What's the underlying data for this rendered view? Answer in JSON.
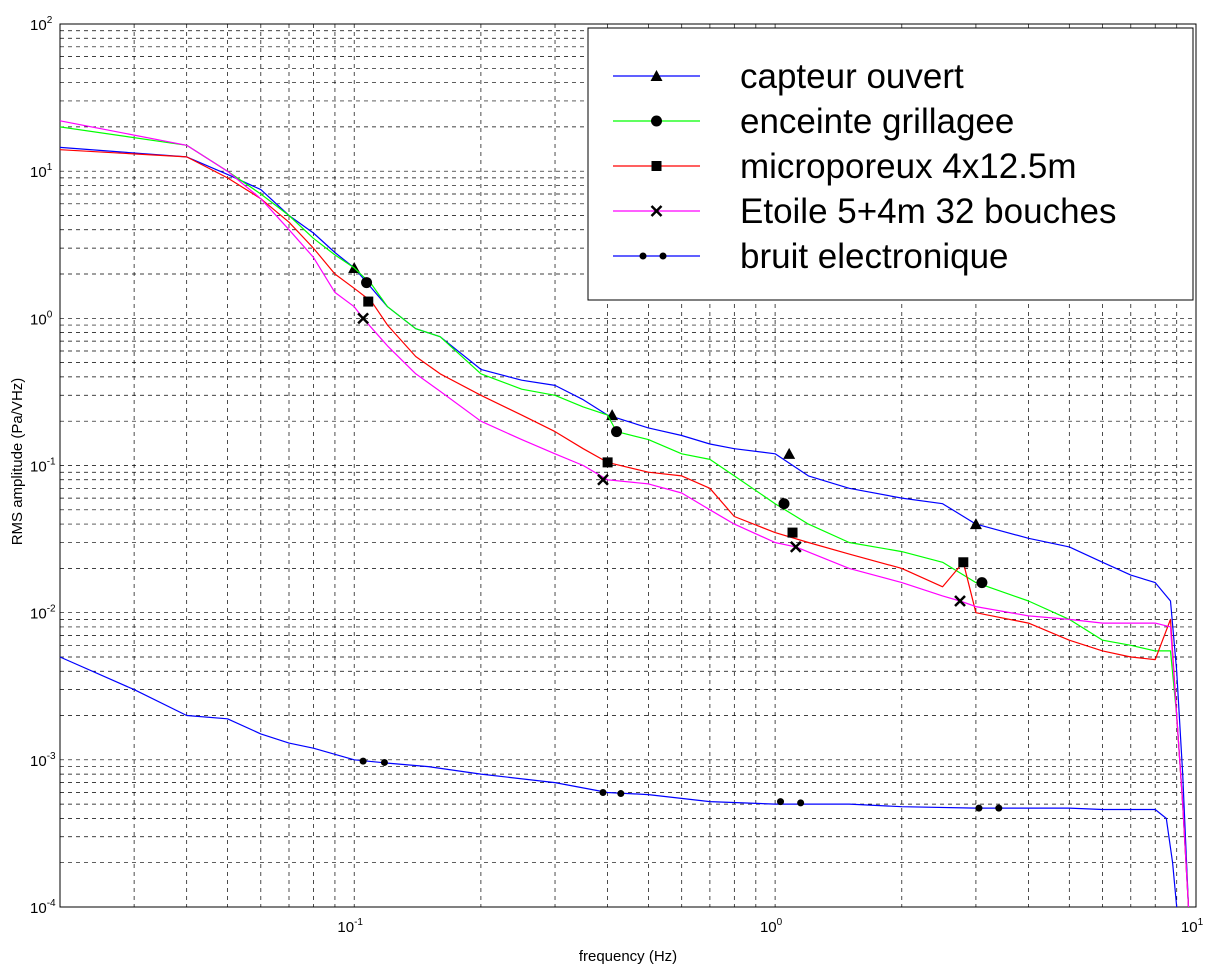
{
  "chart_data": {
    "type": "line",
    "title": "",
    "xlabel": "frequency (Hz)",
    "ylabel": "RMS amplitude (Pa/√Hz)",
    "ylabel_text": "RMS amplitude (Pa/VHz)",
    "xscale": "log",
    "yscale": "log",
    "xlim": [
      0.02,
      10
    ],
    "ylim": [
      0.0001,
      100
    ],
    "x_ticks": [
      {
        "value": 0.1,
        "base": "10",
        "exp": "-1"
      },
      {
        "value": 1,
        "base": "10",
        "exp": "0"
      },
      {
        "value": 10,
        "base": "10",
        "exp": "1"
      }
    ],
    "y_ticks": [
      {
        "value": 0.0001,
        "base": "10",
        "exp": "-4"
      },
      {
        "value": 0.001,
        "base": "10",
        "exp": "-3"
      },
      {
        "value": 0.01,
        "base": "10",
        "exp": "-2"
      },
      {
        "value": 0.1,
        "base": "10",
        "exp": "-1"
      },
      {
        "value": 1,
        "base": "10",
        "exp": "0"
      },
      {
        "value": 10,
        "base": "10",
        "exp": "1"
      },
      {
        "value": 100,
        "base": "10",
        "exp": "2"
      }
    ],
    "grid": true,
    "legend_position": "top-right",
    "series": [
      {
        "name": "capteur ouvert",
        "color": "#0000ff",
        "marker": "triangle",
        "x": [
          0.02,
          0.04,
          0.05,
          0.06,
          0.07,
          0.08,
          0.09,
          0.1,
          0.12,
          0.14,
          0.16,
          0.2,
          0.25,
          0.3,
          0.35,
          0.4,
          0.5,
          0.6,
          0.7,
          0.8,
          1.0,
          1.2,
          1.5,
          2.0,
          2.5,
          3.0,
          4.0,
          5.0,
          6.0,
          7.0,
          8.0,
          8.7,
          9.0,
          9.3,
          9.6
        ],
        "y": [
          14.5,
          12.5,
          9.5,
          7.5,
          5.0,
          3.8,
          2.8,
          2.2,
          1.2,
          0.85,
          0.75,
          0.45,
          0.38,
          0.35,
          0.28,
          0.22,
          0.18,
          0.16,
          0.14,
          0.13,
          0.12,
          0.085,
          0.07,
          0.06,
          0.055,
          0.04,
          0.032,
          0.028,
          0.022,
          0.018,
          0.016,
          0.012,
          0.004,
          0.0008,
          0.0001
        ],
        "markers_x": [
          0.1,
          0.41,
          1.08,
          3.0
        ],
        "markers_y": [
          2.2,
          0.22,
          0.12,
          0.04
        ]
      },
      {
        "name": "enceinte grillagee",
        "color": "#00ff00",
        "marker": "circle",
        "x": [
          0.02,
          0.04,
          0.05,
          0.06,
          0.07,
          0.08,
          0.09,
          0.1,
          0.11,
          0.12,
          0.14,
          0.16,
          0.2,
          0.25,
          0.3,
          0.35,
          0.4,
          0.42,
          0.5,
          0.6,
          0.7,
          0.8,
          1.0,
          1.2,
          1.5,
          2.0,
          2.5,
          3.0,
          4.0,
          5.0,
          6.0,
          7.0,
          8.0,
          8.7,
          9.0,
          9.3,
          9.6
        ],
        "y": [
          20.0,
          15.0,
          10.0,
          7.0,
          5.0,
          3.5,
          2.7,
          2.2,
          1.7,
          1.2,
          0.85,
          0.75,
          0.42,
          0.33,
          0.3,
          0.25,
          0.22,
          0.17,
          0.15,
          0.12,
          0.11,
          0.085,
          0.055,
          0.04,
          0.03,
          0.026,
          0.022,
          0.016,
          0.012,
          0.009,
          0.0065,
          0.006,
          0.0055,
          0.0055,
          0.002,
          0.0005,
          0.0001
        ],
        "markers_x": [
          0.107,
          0.42,
          1.05,
          3.1
        ],
        "markers_y": [
          1.75,
          0.17,
          0.055,
          0.016
        ]
      },
      {
        "name": "microporeux 4x12.5m",
        "color": "#ff0000",
        "marker": "square",
        "x": [
          0.02,
          0.04,
          0.05,
          0.06,
          0.07,
          0.08,
          0.09,
          0.1,
          0.11,
          0.12,
          0.14,
          0.16,
          0.2,
          0.25,
          0.3,
          0.35,
          0.4,
          0.5,
          0.6,
          0.7,
          0.8,
          1.0,
          1.2,
          1.5,
          2.0,
          2.5,
          2.8,
          3.0,
          4.0,
          5.0,
          6.0,
          7.0,
          8.0,
          8.7,
          9.0,
          9.3,
          9.6
        ],
        "y": [
          14.0,
          12.5,
          9.0,
          6.5,
          4.5,
          3.0,
          2.0,
          1.6,
          1.3,
          0.9,
          0.55,
          0.42,
          0.3,
          0.22,
          0.17,
          0.13,
          0.105,
          0.09,
          0.085,
          0.07,
          0.045,
          0.035,
          0.03,
          0.025,
          0.02,
          0.015,
          0.022,
          0.01,
          0.0085,
          0.0065,
          0.0055,
          0.005,
          0.0048,
          0.009,
          0.002,
          0.0005,
          0.0001
        ],
        "markers_x": [
          0.108,
          0.4,
          1.1,
          2.8
        ],
        "markers_y": [
          1.3,
          0.105,
          0.035,
          0.022
        ]
      },
      {
        "name": "Etoile 5+4m 32 bouches",
        "color": "#ff00ff",
        "marker": "x",
        "x": [
          0.02,
          0.04,
          0.05,
          0.06,
          0.07,
          0.08,
          0.09,
          0.1,
          0.105,
          0.12,
          0.14,
          0.16,
          0.2,
          0.25,
          0.3,
          0.35,
          0.4,
          0.5,
          0.6,
          0.7,
          0.8,
          1.0,
          1.12,
          1.5,
          2.0,
          2.5,
          2.75,
          3.0,
          4.0,
          5.0,
          6.0,
          7.0,
          8.0,
          8.7,
          9.0,
          9.3,
          9.6
        ],
        "y": [
          22.0,
          15.0,
          10.0,
          6.5,
          4.0,
          2.6,
          1.5,
          1.2,
          1.0,
          0.65,
          0.42,
          0.32,
          0.2,
          0.15,
          0.12,
          0.1,
          0.08,
          0.075,
          0.065,
          0.05,
          0.04,
          0.03,
          0.028,
          0.02,
          0.016,
          0.013,
          0.012,
          0.011,
          0.0095,
          0.009,
          0.0085,
          0.0085,
          0.0085,
          0.008,
          0.002,
          0.0005,
          0.0001
        ],
        "markers_x": [
          0.105,
          0.39,
          1.12,
          2.75
        ],
        "markers_y": [
          1.0,
          0.08,
          0.028,
          0.012
        ]
      },
      {
        "name": "bruit electronique",
        "color": "#0000ff",
        "marker": "dot-pair",
        "x": [
          0.02,
          0.03,
          0.04,
          0.05,
          0.06,
          0.07,
          0.08,
          0.1,
          0.12,
          0.15,
          0.2,
          0.3,
          0.4,
          0.5,
          0.7,
          1.0,
          1.5,
          2.0,
          3.0,
          4.0,
          5.0,
          6.0,
          7.0,
          8.0,
          8.5,
          8.8,
          9.0
        ],
        "y": [
          0.005,
          0.003,
          0.002,
          0.0019,
          0.0015,
          0.0013,
          0.0012,
          0.001,
          0.00095,
          0.0009,
          0.0008,
          0.0007,
          0.0006,
          0.00058,
          0.00052,
          0.0005,
          0.0005,
          0.00048,
          0.00047,
          0.00047,
          0.00047,
          0.00046,
          0.00046,
          0.00046,
          0.0004,
          0.0002,
          0.0001
        ],
        "markers_x": [
          0.105,
          0.118,
          0.39,
          0.43,
          1.03,
          1.15,
          3.05,
          3.4
        ],
        "markers_y": [
          0.00098,
          0.00096,
          0.0006,
          0.00059,
          0.00052,
          0.00051,
          0.00047,
          0.00047
        ]
      }
    ]
  }
}
